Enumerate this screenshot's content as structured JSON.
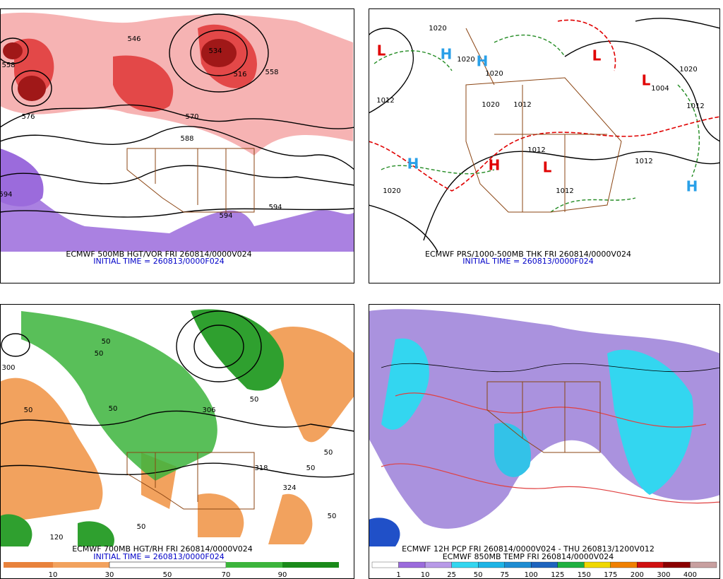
{
  "panels": [
    {
      "caption": "ECMWF 500MB HGT/VOR FRI 260814/0000V024",
      "initial_time": "INITIAL TIME = 260813/0000F024",
      "labels": [
        "558",
        "576",
        "546",
        "534",
        "516",
        "558",
        "570",
        "588",
        "594",
        "594",
        "594"
      ]
    },
    {
      "caption": "ECMWF PRS/1000-500MB THK FRI 260814/0000V024",
      "initial_time": "INITIAL TIME = 260813/0000F024",
      "labels": [
        "1020",
        "1020",
        "1012",
        "1020",
        "1020",
        "1012",
        "1004",
        "1020",
        "1012",
        "1012",
        "1020",
        "1012",
        "1012"
      ],
      "symbols": [
        "L",
        "H",
        "H",
        "H",
        "L",
        "L",
        "H",
        "L",
        "H"
      ]
    },
    {
      "caption": "ECMWF 700MB HGT/RH FRI 260814/0000V024",
      "initial_time": "INITIAL TIME = 260813/0000F024",
      "labels": [
        "300",
        "50",
        "50",
        "306",
        "50",
        "50",
        "50",
        "318",
        "50",
        "50",
        "50",
        "324",
        "50",
        "120"
      ],
      "colorbar": [
        10,
        30,
        50,
        70,
        90
      ]
    },
    {
      "caption": "ECMWF 12H PCP FRI 260814/0000V024 - THU 260813/1200V012",
      "initial_time": "ECMWF 850MB TEMP FRI 260814/0000V024",
      "colorbar": [
        1,
        10,
        25,
        50,
        75,
        100,
        125,
        150,
        175,
        200,
        300,
        400
      ]
    }
  ]
}
